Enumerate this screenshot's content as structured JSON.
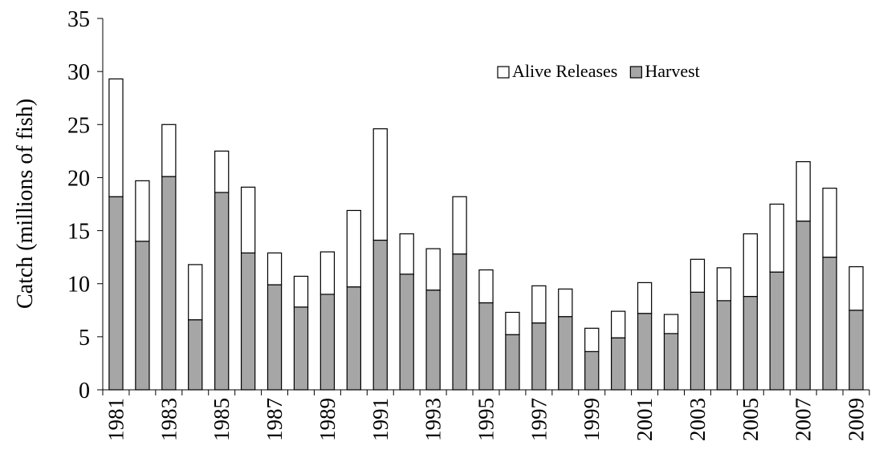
{
  "chart_data": {
    "type": "stacked_bar",
    "y_label": "Catch (millions of fish)",
    "categories": [
      "1981",
      null,
      "1983",
      null,
      "1985",
      null,
      "1987",
      null,
      "1989",
      null,
      "1991",
      null,
      "1993",
      null,
      "1995",
      null,
      "1997",
      null,
      "1999",
      null,
      "2001",
      null,
      "2003",
      null,
      "2005",
      null,
      "2007",
      null,
      "2009"
    ],
    "series": [
      {
        "name": "Harvest",
        "color": "#a6a6a6",
        "values": [
          18.2,
          14.0,
          20.1,
          6.6,
          18.6,
          12.9,
          9.9,
          7.8,
          9.0,
          9.7,
          14.1,
          10.9,
          9.4,
          12.8,
          8.2,
          5.2,
          6.3,
          6.9,
          3.6,
          4.9,
          7.2,
          5.3,
          9.2,
          8.4,
          8.8,
          11.1,
          15.9,
          12.5,
          7.5
        ]
      },
      {
        "name": "Alive Releases",
        "color": "#ffffff",
        "values": [
          11.1,
          5.7,
          4.9,
          5.2,
          3.9,
          6.2,
          3.0,
          2.9,
          4.0,
          7.2,
          10.5,
          3.8,
          3.9,
          5.4,
          3.1,
          2.1,
          3.5,
          2.6,
          2.2,
          2.5,
          2.9,
          1.8,
          3.1,
          3.1,
          5.9,
          6.4,
          5.6,
          6.5,
          4.1
        ]
      }
    ],
    "ylim": [
      0,
      35
    ],
    "yticks": [
      0,
      5,
      10,
      15,
      20,
      25,
      30,
      35
    ],
    "grid": false,
    "legend": "upper right"
  }
}
